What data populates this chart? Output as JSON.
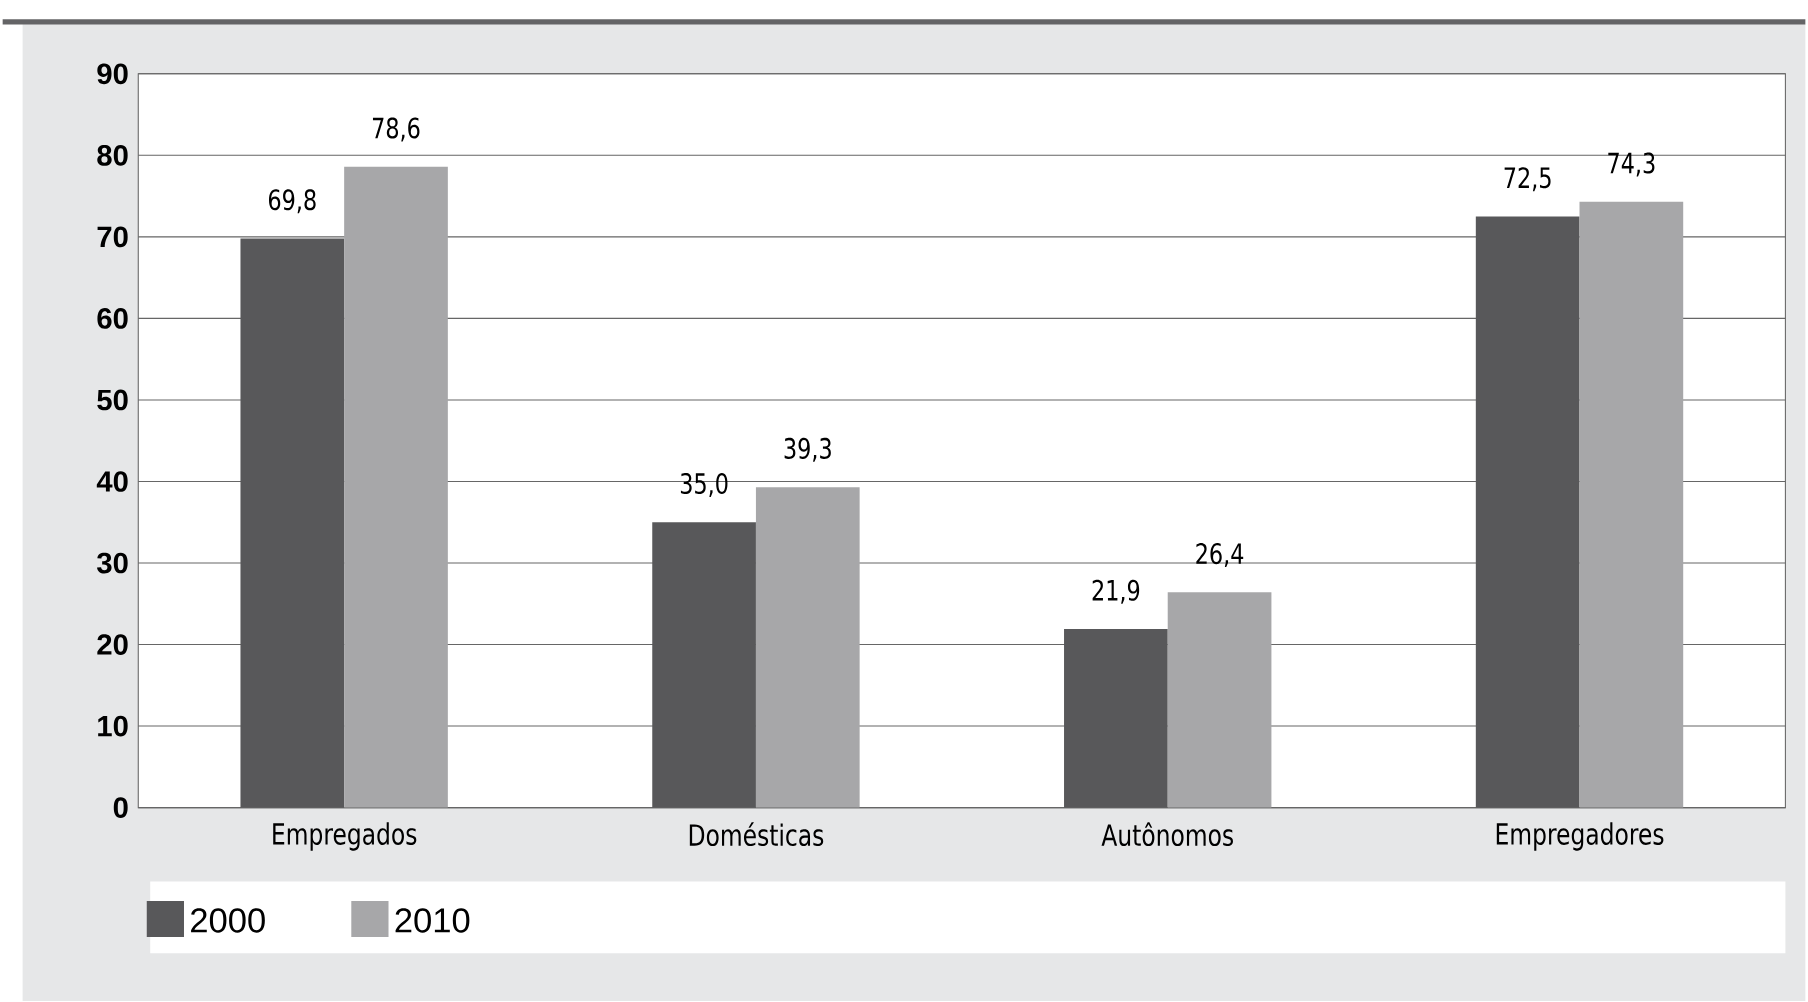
{
  "chart_data": {
    "type": "bar",
    "categories": [
      "Empregados",
      "Domésticas",
      "Autônomos",
      "Empregadores"
    ],
    "series": [
      {
        "name": "2000",
        "color": "#58585a",
        "values": [
          69.8,
          35.0,
          21.9,
          72.5
        ],
        "value_labels": [
          "69,8",
          "35,0",
          "21,9",
          "72,5"
        ]
      },
      {
        "name": "2010",
        "color": "#a7a7a9",
        "values": [
          78.6,
          39.3,
          26.4,
          74.3
        ],
        "value_labels": [
          "78,6",
          "39,3",
          "26,4",
          "74,3"
        ]
      }
    ],
    "ylim": [
      0,
      90
    ],
    "yticks": [
      0,
      10,
      20,
      30,
      40,
      50,
      60,
      70,
      80,
      90
    ],
    "grid": "y",
    "legend": "bottom"
  }
}
